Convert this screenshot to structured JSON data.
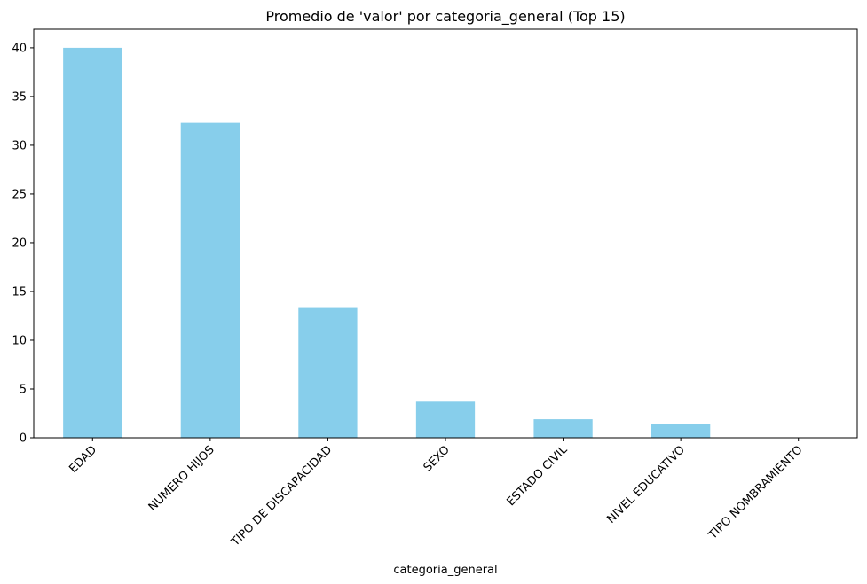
{
  "chart_data": {
    "type": "bar",
    "title": "Promedio de 'valor' por categoria_general (Top 15)",
    "xlabel": "categoria_general",
    "ylabel": "",
    "categories": [
      "EDAD",
      "NUMERO HIJOS",
      "TIPO DE DISCAPACIDAD",
      "SEXO",
      "ESTADO CIVIL",
      "NIVEL EDUCATIVO",
      "TIPO NOMBRAMIENTO"
    ],
    "values": [
      40.0,
      32.3,
      13.4,
      3.7,
      1.9,
      1.4,
      0.0
    ],
    "ylim": [
      0,
      41.9
    ],
    "yticks": [
      "0",
      "5",
      "10",
      "15",
      "20",
      "25",
      "30",
      "35",
      "40"
    ],
    "bar_color": "#87ceeb",
    "grid": false,
    "legend": "none"
  }
}
